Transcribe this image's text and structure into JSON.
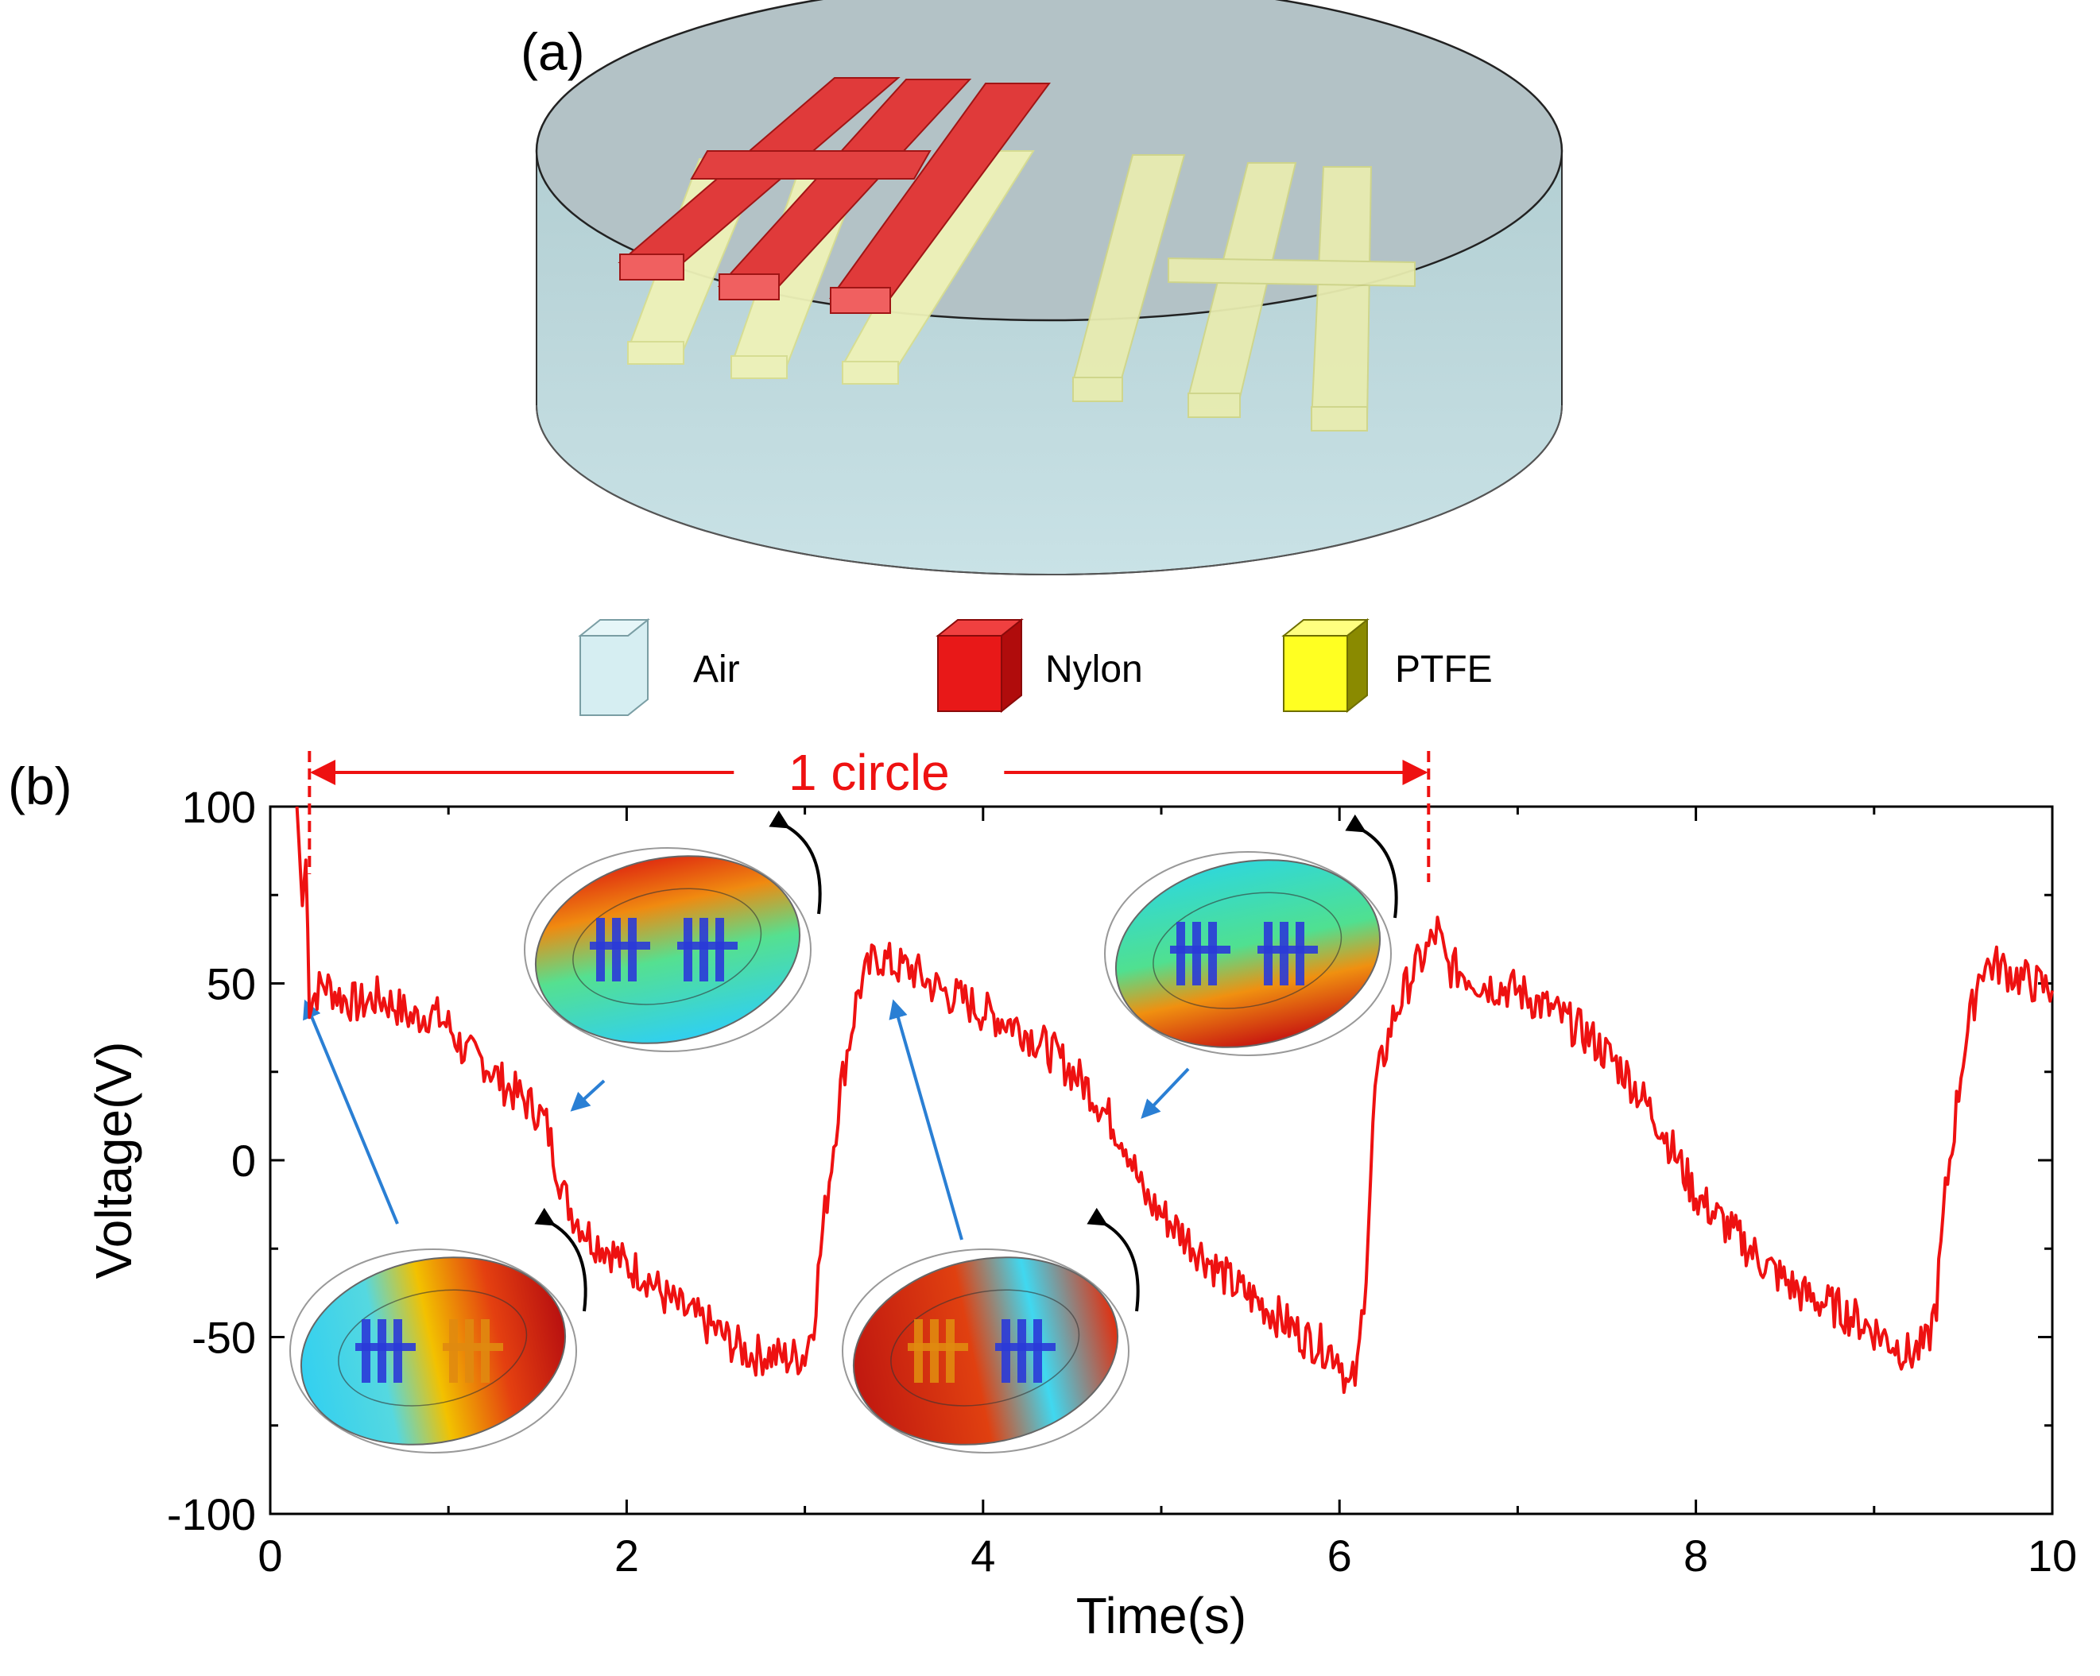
{
  "panel_a": {
    "label": "(a)",
    "legend": [
      {
        "name": "Air",
        "color": "#bfe3ea"
      },
      {
        "name": "Nylon",
        "color": "#e02020"
      },
      {
        "name": "PTFE",
        "color": "#ffff33"
      }
    ]
  },
  "chart_data": {
    "type": "line",
    "panel_label": "(b)",
    "title": "",
    "xlabel": "Time(s)",
    "ylabel": "Voltage(V)",
    "xlim": [
      0,
      10
    ],
    "ylim": [
      -100,
      100
    ],
    "x_ticks": [
      0,
      2,
      4,
      6,
      8,
      10
    ],
    "y_ticks": [
      100,
      50,
      0,
      -50,
      -100
    ],
    "x_tick_labels": [
      "0",
      "2",
      "4",
      "6",
      "8",
      "10"
    ],
    "y_tick_labels": [
      "100",
      "50",
      "0",
      "-50",
      "-100"
    ],
    "grid": false,
    "line_color": "#ee1111",
    "annotation": {
      "text": "1 circle",
      "from_time": 0.22,
      "to_time": 6.5,
      "color": "#ee1111"
    },
    "insets": [
      {
        "time": 0.2,
        "voltage": 40
      },
      {
        "time": 1.7,
        "voltage": 10
      },
      {
        "time": 3.5,
        "voltage": 40
      },
      {
        "time": 4.9,
        "voltage": 8
      }
    ],
    "series": [
      {
        "name": "Voltage",
        "x": [
          0.15,
          0.18,
          0.2,
          0.22,
          0.25,
          0.3,
          0.35,
          0.4,
          0.5,
          0.6,
          0.7,
          0.8,
          0.9,
          1.0,
          1.1,
          1.2,
          1.3,
          1.4,
          1.5,
          1.55,
          1.6,
          1.65,
          1.7,
          1.8,
          1.9,
          2.0,
          2.1,
          2.2,
          2.3,
          2.4,
          2.5,
          2.6,
          2.7,
          2.8,
          2.9,
          3.0,
          3.05,
          3.1,
          3.2,
          3.3,
          3.4,
          3.5,
          3.6,
          3.7,
          3.8,
          3.9,
          4.0,
          4.2,
          4.4,
          4.6,
          4.8,
          4.9,
          5.0,
          5.2,
          5.4,
          5.6,
          5.8,
          6.0,
          6.05,
          6.1,
          6.15,
          6.2,
          6.3,
          6.4,
          6.5,
          6.55,
          6.6,
          6.7,
          6.8,
          7.0,
          7.2,
          7.4,
          7.6,
          7.8,
          8.0,
          8.2,
          8.4,
          8.6,
          8.8,
          9.0,
          9.2,
          9.3,
          9.35,
          9.4,
          9.5,
          9.6,
          9.7,
          9.8,
          9.9,
          10.0
        ],
        "y": [
          100,
          72,
          85,
          45,
          47,
          50,
          48,
          46,
          44,
          46,
          44,
          40,
          42,
          38,
          30,
          28,
          22,
          18,
          14,
          10,
          0,
          -10,
          -15,
          -22,
          -25,
          -30,
          -32,
          -38,
          -42,
          -45,
          -48,
          -52,
          -55,
          -55,
          -56,
          -55,
          -45,
          -20,
          20,
          48,
          58,
          55,
          54,
          50,
          47,
          45,
          42,
          38,
          30,
          20,
          5,
          -10,
          -15,
          -25,
          -35,
          -42,
          -50,
          -55,
          -65,
          -60,
          -30,
          20,
          40,
          52,
          60,
          65,
          55,
          53,
          50,
          48,
          42,
          35,
          25,
          10,
          -10,
          -20,
          -30,
          -38,
          -42,
          -48,
          -55,
          -52,
          -40,
          -10,
          30,
          55,
          55,
          52,
          50,
          48
        ]
      }
    ]
  }
}
